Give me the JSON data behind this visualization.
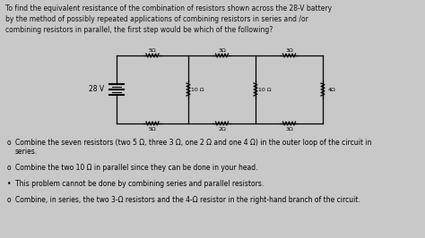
{
  "bg_color": "#c8c8c8",
  "text_color": "#111111",
  "title_lines": [
    "To find the equivalent resistance of the combination of resistors shown across the 28-V battery",
    "by the method of possibly repeated applications of combining resistors in series and /or",
    "combining resistors in parallel, the first step would be which of the following?"
  ],
  "options": [
    {
      "bullet": "o",
      "text": "Combine the seven resistors (two 5 Ω, three 3 Ω, one 2 Ω and one 4 Ω) in the outer loop of the circuit in series.",
      "indent": "    series."
    },
    {
      "bullet": "o",
      "text": "Combine the two 10 Ω in parallel since they can be done in your head."
    },
    {
      "bullet": "•",
      "text": "This problem cannot be done by combining series and parallel resistors."
    },
    {
      "bullet": "o",
      "text": "Combine, in series, the two 3-Ω resistors and the 4-Ω resistor in the right-hand branch of the circuit."
    }
  ],
  "circuit": {
    "battery_label": "28 V",
    "top_resistors": [
      "5Ω",
      "3Ω",
      "3Ω"
    ],
    "mid_resistors": [
      "10 Ω",
      "10 Ω",
      "4Ω"
    ],
    "bot_resistors": [
      "5Ω",
      "2Ω",
      "3Ω"
    ]
  }
}
